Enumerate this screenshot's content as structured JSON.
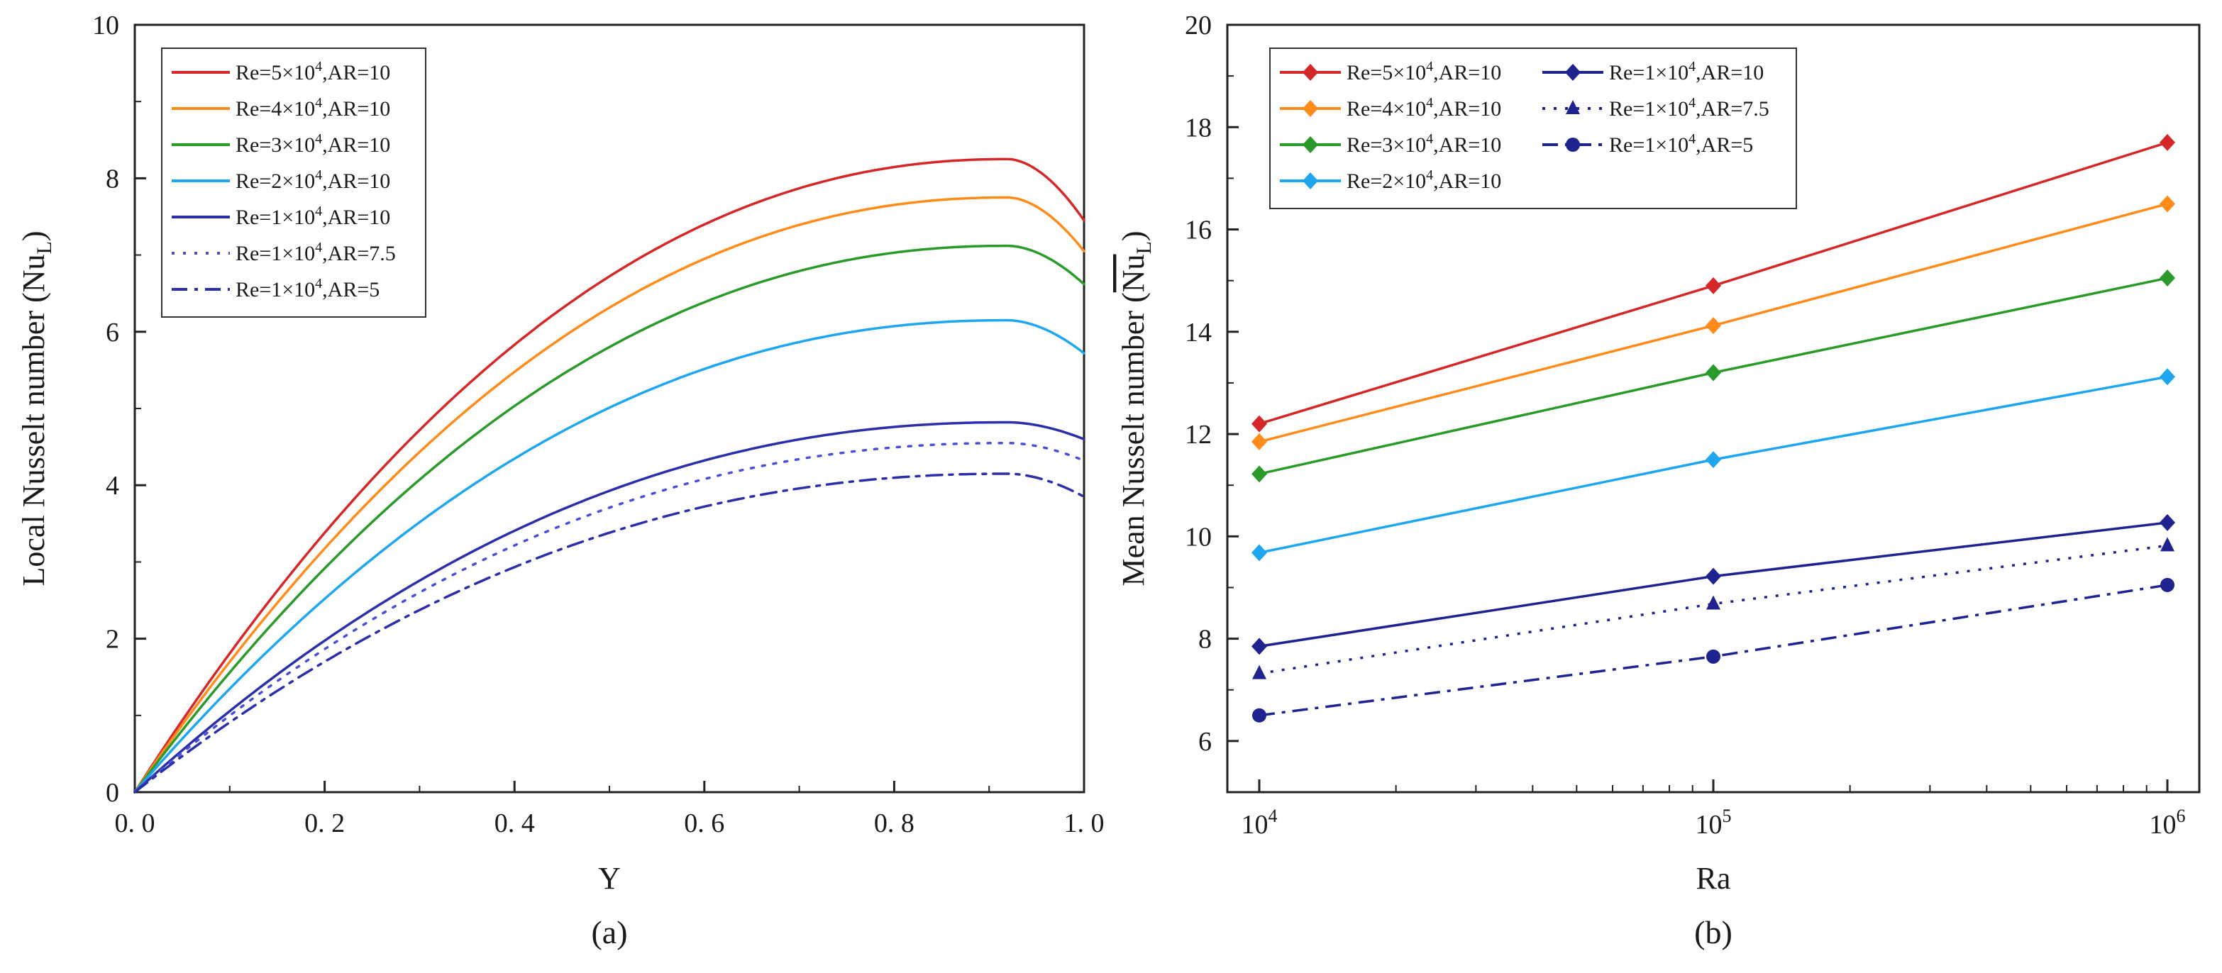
{
  "chart_data": [
    {
      "type": "line",
      "panel_label": "(a)",
      "xlabel": "Y",
      "ylabel": "Local Nusselt number (Nu",
      "ylabel_sub": "L",
      "ylabel_close": ")",
      "xlim": [
        0.0,
        1.0
      ],
      "ylim": [
        0,
        10
      ],
      "xticks": [
        0.0,
        0.2,
        0.4,
        0.6,
        0.8,
        1.0
      ],
      "xtick_labels": [
        "0. 0",
        "0. 2",
        "0. 4",
        "0. 6",
        "0. 8",
        "1. 0"
      ],
      "yticks": [
        0,
        2,
        4,
        6,
        8,
        10
      ],
      "ytick_labels": [
        "0",
        "2",
        "4",
        "6",
        "8",
        "10"
      ],
      "legend_position": "top-left",
      "series": [
        {
          "name": "Re=5×10⁴,AR=10",
          "label_pre": "Re=5×10",
          "label_sup": "4",
          "label_post": ",AR=10",
          "color": "#d62728",
          "style": "solid",
          "peak": 8.25,
          "end": 7.45
        },
        {
          "name": "Re=4×10⁴,AR=10",
          "label_pre": "Re=4×10",
          "label_sup": "4",
          "label_post": ",AR=10",
          "color": "#ff8c1a",
          "style": "solid",
          "peak": 7.75,
          "end": 7.05
        },
        {
          "name": "Re=3×10⁴,AR=10",
          "label_pre": "Re=3×10",
          "label_sup": "4",
          "label_post": ",AR=10",
          "color": "#2a9a2a",
          "style": "solid",
          "peak": 7.12,
          "end": 6.62
        },
        {
          "name": "Re=2×10⁴,AR=10",
          "label_pre": "Re=2×10",
          "label_sup": "4",
          "label_post": ",AR=10",
          "color": "#1ea7f0",
          "style": "solid",
          "peak": 6.15,
          "end": 5.72
        },
        {
          "name": "Re=1×10⁴,AR=10",
          "label_pre": "Re=1×10",
          "label_sup": "4",
          "label_post": ",AR=10",
          "color": "#2b2fa8",
          "style": "solid",
          "peak": 4.82,
          "end": 4.6
        },
        {
          "name": "Re=1×10⁴,AR=7.5",
          "label_pre": "Re=1×10",
          "label_sup": "4",
          "label_post": ",AR=7.5",
          "color": "#4b4fd8",
          "style": "dotted",
          "peak": 4.55,
          "end": 4.32
        },
        {
          "name": "Re=1×10⁴,AR=5",
          "label_pre": "Re=1×10",
          "label_sup": "4",
          "label_post": ",AR=5",
          "color": "#2b2fa8",
          "style": "dashdot",
          "peak": 4.15,
          "end": 3.85
        }
      ]
    },
    {
      "type": "line",
      "panel_label": "(b)",
      "xlabel": "Ra",
      "ylabel": "Mean Nusselt number (",
      "ylabel_bar": "Nu",
      "ylabel_sub": "L",
      "ylabel_close": ")",
      "xscale": "log",
      "xlim": [
        10000,
        1000000
      ],
      "ylim": [
        5,
        20
      ],
      "x": [
        10000,
        100000,
        1000000
      ],
      "xticks": [
        10000,
        100000,
        1000000
      ],
      "xtick_base": "10",
      "xtick_exps": [
        "4",
        "5",
        "6"
      ],
      "yticks": [
        6,
        8,
        10,
        12,
        14,
        16,
        18,
        20
      ],
      "ytick_labels": [
        "6",
        "8",
        "10",
        "12",
        "14",
        "16",
        "18",
        "20"
      ],
      "legend_position": "top-left",
      "series": [
        {
          "name": "Re=5×10⁴,AR=10",
          "label_pre": "Re=5×10",
          "label_sup": "4",
          "label_post": ",AR=10",
          "color": "#d62728",
          "style": "solid",
          "marker": "diamond",
          "values": [
            12.2,
            14.9,
            17.7
          ]
        },
        {
          "name": "Re=4×10⁴,AR=10",
          "label_pre": "Re=4×10",
          "label_sup": "4",
          "label_post": ",AR=10",
          "color": "#ff8c1a",
          "style": "solid",
          "marker": "diamond",
          "values": [
            11.85,
            14.12,
            16.5
          ]
        },
        {
          "name": "Re=3×10⁴,AR=10",
          "label_pre": "Re=3×10",
          "label_sup": "4",
          "label_post": ",AR=10",
          "color": "#2a9a2a",
          "style": "solid",
          "marker": "diamond",
          "values": [
            11.22,
            13.2,
            15.05
          ]
        },
        {
          "name": "Re=2×10⁴,AR=10",
          "label_pre": "Re=2×10",
          "label_sup": "4",
          "label_post": ",AR=10",
          "color": "#1ea7f0",
          "style": "solid",
          "marker": "diamond",
          "values": [
            9.68,
            11.5,
            13.12
          ]
        },
        {
          "name": "Re=1×10⁴,AR=10",
          "label_pre": "Re=1×10",
          "label_sup": "4",
          "label_post": ",AR=10",
          "color": "#1f2390",
          "style": "solid",
          "marker": "diamond",
          "values": [
            7.85,
            9.22,
            10.27
          ]
        },
        {
          "name": "Re=1×10⁴,AR=7.5",
          "label_pre": "Re=1×10",
          "label_sup": "4",
          "label_post": ",AR=7.5",
          "color": "#1f2390",
          "style": "dotted",
          "marker": "triangle",
          "values": [
            7.32,
            8.68,
            9.82
          ]
        },
        {
          "name": "Re=1×10⁴,AR=5",
          "label_pre": "Re=1×10",
          "label_sup": "4",
          "label_post": ",AR=5",
          "color": "#1f2390",
          "style": "dashdot",
          "marker": "circle",
          "values": [
            6.5,
            7.65,
            9.05
          ]
        }
      ]
    }
  ]
}
